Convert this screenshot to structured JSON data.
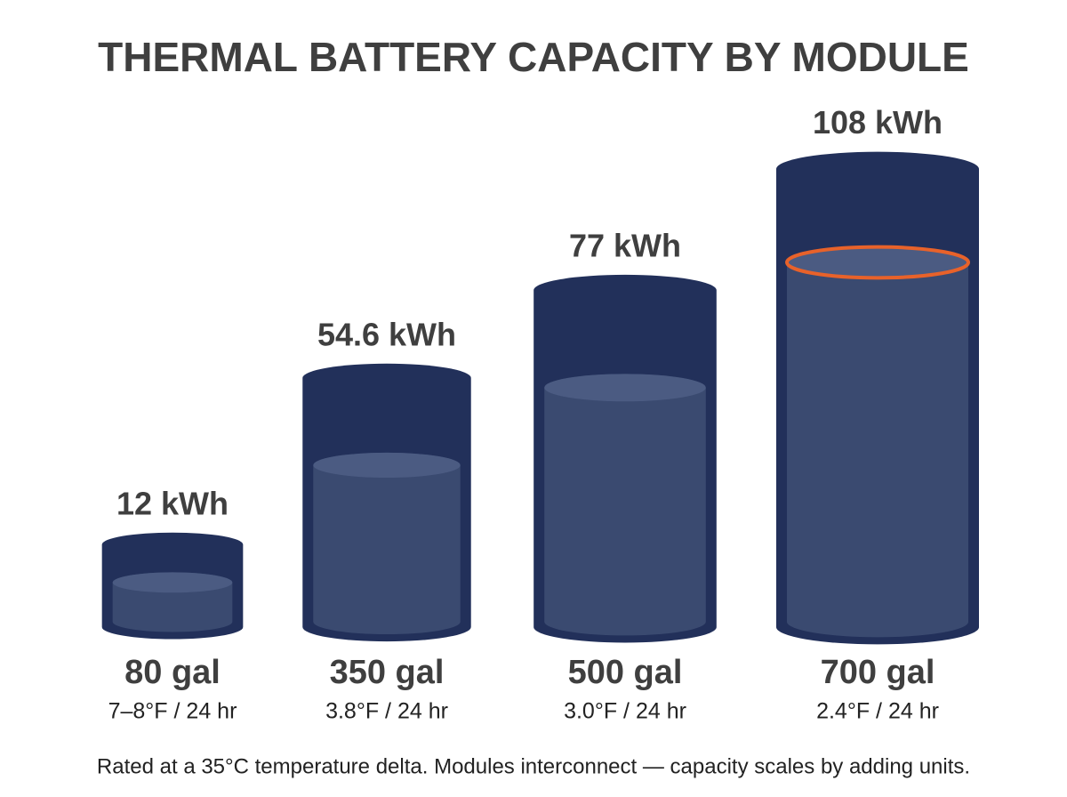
{
  "chart_data": {
    "type": "cylinder",
    "title": "THERMAL BATTERY CAPACITY BY MODULE",
    "categories": [
      "80 gal",
      "350 gal",
      "500 gal",
      "700 gal"
    ],
    "sublabels": [
      "7–8°F / 24 hr",
      "3.8°F / 24 hr",
      "3.0°F / 24 hr",
      "2.4°F / 24 hr"
    ],
    "values": [
      12,
      54.6,
      77,
      108
    ],
    "value_labels": [
      "12 kWh",
      "54.6 kWh",
      "77 kWh",
      "108 kWh"
    ],
    "color": "#22305a",
    "fill_color": "#3a4a70",
    "highlight_color": "#e8622a",
    "footnote": "Rated at a 35°C temperature delta. Modules interconnect — capacity scales by adding units."
  }
}
